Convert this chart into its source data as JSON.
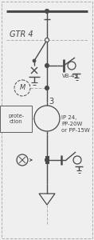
{
  "bg_color": "#efefef",
  "line_color": "#4a4a4a",
  "dash_color": "#b0b0b0",
  "text_color": "#444444",
  "title": "GTR 4",
  "label_vb4s": "VB-4S",
  "label_ip": "IP 24,\nPP-20W\nor PP-15W",
  "label_protection": "prote-\nction",
  "label_3": "3",
  "fig_width": 1.18,
  "fig_height": 3.0,
  "dpi": 100
}
